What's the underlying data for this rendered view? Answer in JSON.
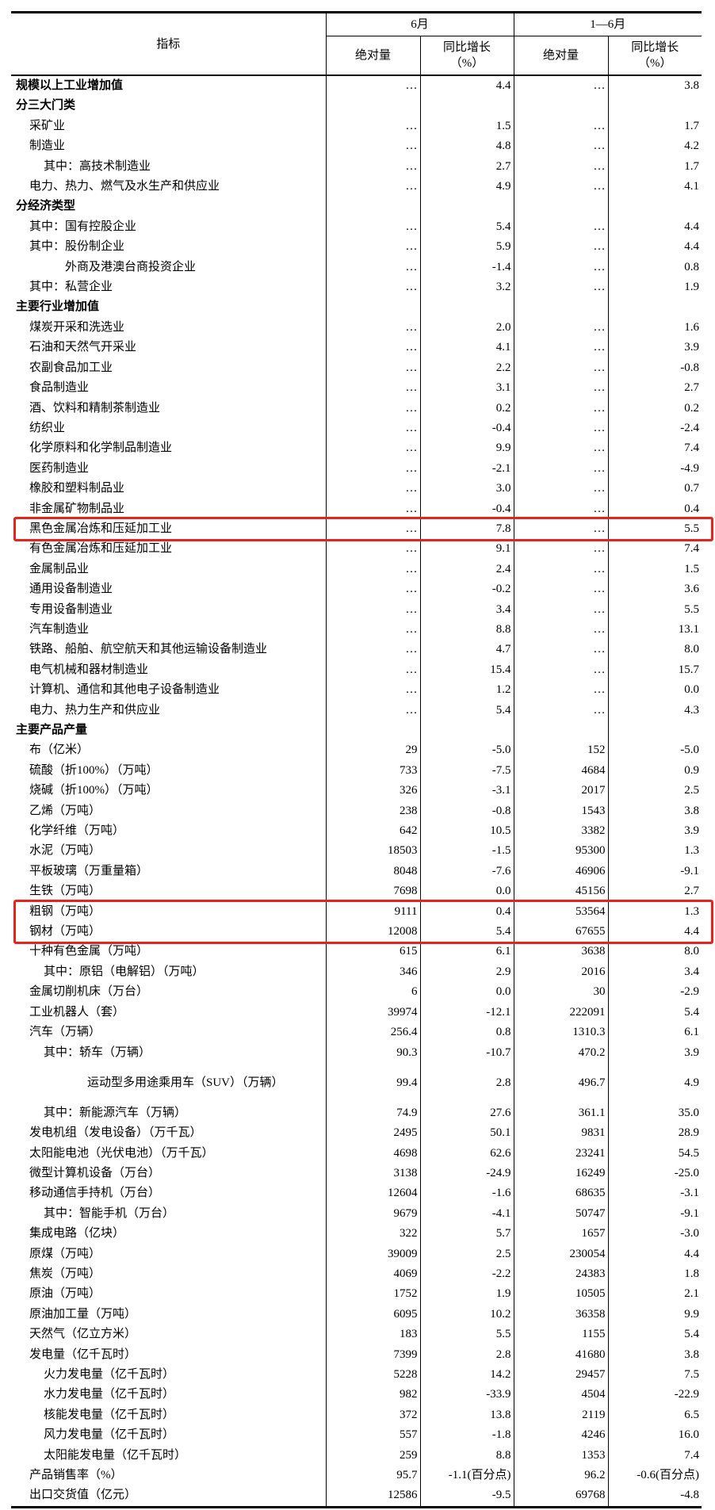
{
  "header": {
    "indicator": "指标",
    "period1": "6月",
    "period2": "1—6月",
    "abs": "绝对量",
    "yoy_line1": "同比增长",
    "yoy_line2": "（%）"
  },
  "highlight_color": "#e8231d",
  "rows": [
    {
      "label": "规模以上工业增加值",
      "style": "section",
      "v": [
        "…",
        "4.4",
        "…",
        "3.8"
      ]
    },
    {
      "label": "分三大门类",
      "style": "section",
      "v": [
        "",
        "",
        "",
        ""
      ]
    },
    {
      "label": "采矿业",
      "style": "item",
      "v": [
        "…",
        "1.5",
        "…",
        "1.7"
      ]
    },
    {
      "label": "制造业",
      "style": "item",
      "v": [
        "…",
        "4.8",
        "…",
        "4.2"
      ]
    },
    {
      "label": "其中：高技术制造业",
      "style": "sub",
      "v": [
        "…",
        "2.7",
        "…",
        "1.7"
      ]
    },
    {
      "label": "电力、热力、燃气及水生产和供应业",
      "style": "item",
      "v": [
        "…",
        "4.9",
        "…",
        "4.1"
      ]
    },
    {
      "label": "分经济类型",
      "style": "section",
      "v": [
        "",
        "",
        "",
        ""
      ]
    },
    {
      "label": "其中：国有控股企业",
      "style": "item",
      "v": [
        "…",
        "5.4",
        "…",
        "4.4"
      ]
    },
    {
      "label": "其中：股份制企业",
      "style": "item",
      "v": [
        "…",
        "5.9",
        "…",
        "4.4"
      ]
    },
    {
      "label": "　　　外商及港澳台商投资企业",
      "style": "item",
      "v": [
        "…",
        "-1.4",
        "…",
        "0.8"
      ]
    },
    {
      "label": "其中：私营企业",
      "style": "item",
      "v": [
        "…",
        "3.2",
        "…",
        "1.9"
      ]
    },
    {
      "label": "主要行业增加值",
      "style": "section",
      "v": [
        "",
        "",
        "",
        ""
      ]
    },
    {
      "label": "煤炭开采和洗选业",
      "style": "item",
      "v": [
        "…",
        "2.0",
        "…",
        "1.6"
      ]
    },
    {
      "label": "石油和天然气开采业",
      "style": "item",
      "v": [
        "…",
        "4.1",
        "…",
        "3.9"
      ]
    },
    {
      "label": "农副食品加工业",
      "style": "item",
      "v": [
        "…",
        "2.2",
        "…",
        "-0.8"
      ]
    },
    {
      "label": "食品制造业",
      "style": "item",
      "v": [
        "…",
        "3.1",
        "…",
        "2.7"
      ]
    },
    {
      "label": "酒、饮料和精制茶制造业",
      "style": "item",
      "v": [
        "…",
        "0.2",
        "…",
        "0.2"
      ]
    },
    {
      "label": "纺织业",
      "style": "item",
      "v": [
        "…",
        "-0.4",
        "…",
        "-2.4"
      ]
    },
    {
      "label": "化学原料和化学制品制造业",
      "style": "item",
      "v": [
        "…",
        "9.9",
        "…",
        "7.4"
      ]
    },
    {
      "label": "医药制造业",
      "style": "item",
      "v": [
        "…",
        "-2.1",
        "…",
        "-4.9"
      ]
    },
    {
      "label": "橡胶和塑料制品业",
      "style": "item",
      "v": [
        "…",
        "3.0",
        "…",
        "0.7"
      ]
    },
    {
      "label": "非金属矿物制品业",
      "style": "item",
      "v": [
        "…",
        "-0.4",
        "…",
        "0.4"
      ]
    },
    {
      "label": "黑色金属冶炼和压延加工业",
      "style": "item",
      "highlighted": true,
      "v": [
        "…",
        "7.8",
        "…",
        "5.5"
      ]
    },
    {
      "label": "有色金属冶炼和压延加工业",
      "style": "item",
      "v": [
        "…",
        "9.1",
        "…",
        "7.4"
      ]
    },
    {
      "label": "金属制品业",
      "style": "item",
      "v": [
        "…",
        "2.4",
        "…",
        "1.5"
      ]
    },
    {
      "label": "通用设备制造业",
      "style": "item",
      "v": [
        "…",
        "-0.2",
        "…",
        "3.6"
      ]
    },
    {
      "label": "专用设备制造业",
      "style": "item",
      "v": [
        "…",
        "3.4",
        "…",
        "5.5"
      ]
    },
    {
      "label": "汽车制造业",
      "style": "item",
      "v": [
        "…",
        "8.8",
        "…",
        "13.1"
      ]
    },
    {
      "label": "铁路、船舶、航空航天和其他运输设备制造业",
      "style": "item",
      "v": [
        "…",
        "4.7",
        "…",
        "8.0"
      ]
    },
    {
      "label": "电气机械和器材制造业",
      "style": "item",
      "v": [
        "…",
        "15.4",
        "…",
        "15.7"
      ]
    },
    {
      "label": "计算机、通信和其他电子设备制造业",
      "style": "item",
      "v": [
        "…",
        "1.2",
        "…",
        "0.0"
      ]
    },
    {
      "label": "电力、热力生产和供应业",
      "style": "item",
      "v": [
        "…",
        "5.4",
        "…",
        "4.3"
      ]
    },
    {
      "label": "主要产品产量",
      "style": "section",
      "v": [
        "",
        "",
        "",
        ""
      ]
    },
    {
      "label": "布（亿米）",
      "style": "item",
      "v": [
        "29",
        "-5.0",
        "152",
        "-5.0"
      ]
    },
    {
      "label": "硫酸（折100%）（万吨）",
      "style": "item",
      "v": [
        "733",
        "-7.5",
        "4684",
        "0.9"
      ]
    },
    {
      "label": "烧碱（折100%）（万吨）",
      "style": "item",
      "v": [
        "326",
        "-3.1",
        "2017",
        "2.5"
      ]
    },
    {
      "label": "乙烯（万吨）",
      "style": "item",
      "v": [
        "238",
        "-0.8",
        "1543",
        "3.8"
      ]
    },
    {
      "label": "化学纤维（万吨）",
      "style": "item",
      "v": [
        "642",
        "10.5",
        "3382",
        "3.9"
      ]
    },
    {
      "label": "水泥（万吨）",
      "style": "item",
      "v": [
        "18503",
        "-1.5",
        "95300",
        "1.3"
      ]
    },
    {
      "label": "平板玻璃（万重量箱）",
      "style": "item",
      "v": [
        "8048",
        "-7.6",
        "46906",
        "-9.1"
      ]
    },
    {
      "label": "生铁（万吨）",
      "style": "item",
      "v": [
        "7698",
        "0.0",
        "45156",
        "2.7"
      ]
    },
    {
      "label": "粗钢（万吨）",
      "style": "item",
      "highlighted": true,
      "v": [
        "9111",
        "0.4",
        "53564",
        "1.3"
      ]
    },
    {
      "label": "钢材（万吨）",
      "style": "item",
      "highlighted": true,
      "v": [
        "12008",
        "5.4",
        "67655",
        "4.4"
      ]
    },
    {
      "label": "十种有色金属（万吨）",
      "style": "item",
      "v": [
        "615",
        "6.1",
        "3638",
        "8.0"
      ]
    },
    {
      "label": "其中：原铝（电解铝）（万吨）",
      "style": "sub",
      "v": [
        "346",
        "2.9",
        "2016",
        "3.4"
      ]
    },
    {
      "label": "金属切削机床（万台）",
      "style": "item",
      "v": [
        "6",
        "0.0",
        "30",
        "-2.9"
      ]
    },
    {
      "label": "工业机器人（套）",
      "style": "item",
      "v": [
        "39974",
        "-12.1",
        "222091",
        "5.4"
      ]
    },
    {
      "label": "汽车（万辆）",
      "style": "item",
      "v": [
        "256.4",
        "0.8",
        "1310.3",
        "6.1"
      ]
    },
    {
      "label": "其中：轿车（万辆）",
      "style": "sub",
      "v": [
        "90.3",
        "-10.7",
        "470.2",
        "3.9"
      ]
    },
    {
      "label": "运动型多用途乘用车（SUV）（万辆）",
      "style": "suv",
      "v": [
        "99.4",
        "2.8",
        "496.7",
        "4.9"
      ]
    },
    {
      "label": "其中：新能源汽车（万辆）",
      "style": "sub",
      "v": [
        "74.9",
        "27.6",
        "361.1",
        "35.0"
      ]
    },
    {
      "label": "发电机组（发电设备）（万千瓦）",
      "style": "item",
      "v": [
        "2495",
        "50.1",
        "9831",
        "28.9"
      ]
    },
    {
      "label": "太阳能电池（光伏电池）（万千瓦）",
      "style": "item",
      "v": [
        "4698",
        "62.6",
        "23241",
        "54.5"
      ]
    },
    {
      "label": "微型计算机设备（万台）",
      "style": "item",
      "v": [
        "3138",
        "-24.9",
        "16249",
        "-25.0"
      ]
    },
    {
      "label": "移动通信手持机（万台）",
      "style": "item",
      "v": [
        "12604",
        "-1.6",
        "68635",
        "-3.1"
      ]
    },
    {
      "label": "其中：智能手机（万台）",
      "style": "sub",
      "v": [
        "9679",
        "-4.1",
        "50747",
        "-9.1"
      ]
    },
    {
      "label": "集成电路（亿块）",
      "style": "item",
      "v": [
        "322",
        "5.7",
        "1657",
        "-3.0"
      ]
    },
    {
      "label": "原煤（万吨）",
      "style": "item",
      "v": [
        "39009",
        "2.5",
        "230054",
        "4.4"
      ]
    },
    {
      "label": "焦炭（万吨）",
      "style": "item",
      "v": [
        "4069",
        "-2.2",
        "24383",
        "1.8"
      ]
    },
    {
      "label": "原油（万吨）",
      "style": "item",
      "v": [
        "1752",
        "1.9",
        "10505",
        "2.1"
      ]
    },
    {
      "label": "原油加工量（万吨）",
      "style": "item",
      "v": [
        "6095",
        "10.2",
        "36358",
        "9.9"
      ]
    },
    {
      "label": "天然气（亿立方米）",
      "style": "item",
      "v": [
        "183",
        "5.5",
        "1155",
        "5.4"
      ]
    },
    {
      "label": "发电量（亿千瓦时）",
      "style": "item",
      "v": [
        "7399",
        "2.8",
        "41680",
        "3.8"
      ]
    },
    {
      "label": "火力发电量（亿千瓦时）",
      "style": "sub",
      "v": [
        "5228",
        "14.2",
        "29457",
        "7.5"
      ]
    },
    {
      "label": "水力发电量（亿千瓦时）",
      "style": "sub",
      "v": [
        "982",
        "-33.9",
        "4504",
        "-22.9"
      ]
    },
    {
      "label": "核能发电量（亿千瓦时）",
      "style": "sub",
      "v": [
        "372",
        "13.8",
        "2119",
        "6.5"
      ]
    },
    {
      "label": "风力发电量（亿千瓦时）",
      "style": "sub",
      "v": [
        "557",
        "-1.8",
        "4246",
        "16.0"
      ]
    },
    {
      "label": "太阳能发电量（亿千瓦时）",
      "style": "sub",
      "v": [
        "259",
        "8.8",
        "1353",
        "7.4"
      ]
    },
    {
      "label": "产品销售率（%）",
      "style": "item",
      "v": [
        "95.7",
        "-1.1(百分点)",
        "96.2",
        "-0.6(百分点)"
      ]
    },
    {
      "label": "出口交货值（亿元）",
      "style": "item",
      "v": [
        "12586",
        "-9.5",
        "69768",
        "-4.8"
      ]
    }
  ]
}
